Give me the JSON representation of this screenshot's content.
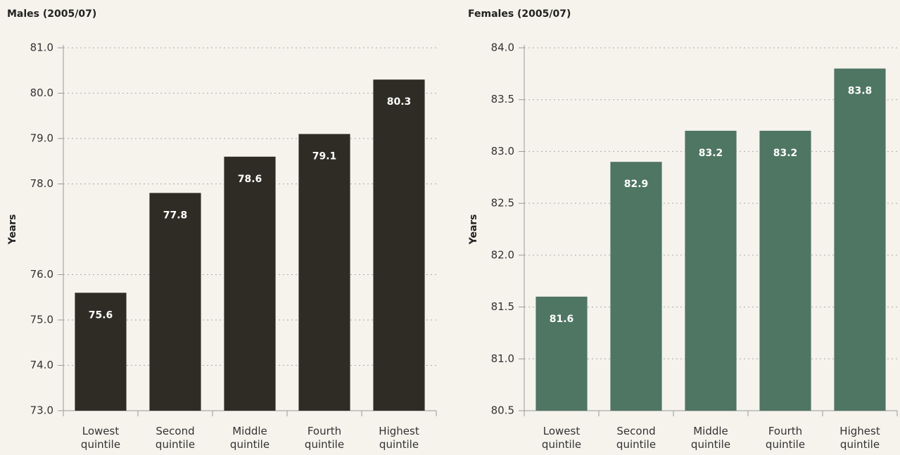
{
  "chart_data": [
    {
      "type": "bar",
      "title": "Males (2005/07)",
      "y_label": "Years",
      "categories": [
        "Lowest quintile",
        "Second quintile",
        "Middle quintile",
        "Fourth quintile",
        "Highest quintile"
      ],
      "values": [
        75.6,
        77.8,
        78.6,
        79.1,
        80.3
      ],
      "color": "#2f2c26",
      "ylim": [
        73,
        81
      ],
      "yticks": [
        {
          "value": 81,
          "label": "81.0"
        },
        {
          "value": 80,
          "label": "80.0"
        },
        {
          "value": 79,
          "label": "79.0"
        },
        {
          "value": 78,
          "label": "78.0"
        },
        {
          "value": 76,
          "label": "76.0"
        },
        {
          "value": 75,
          "label": "75.0"
        },
        {
          "value": 74,
          "label": "74.0"
        },
        {
          "value": 73,
          "label": "73.0"
        }
      ],
      "grid": true
    },
    {
      "type": "bar",
      "title": "Females (2005/07)",
      "y_label": "Years",
      "categories": [
        "Lowest quintile",
        "Second quintile",
        "Middle quintile",
        "Fourth quintile",
        "Highest quintile"
      ],
      "values": [
        81.6,
        82.9,
        83.2,
        83.2,
        83.8
      ],
      "color": "#4f7563",
      "ylim": [
        80.5,
        84
      ],
      "yticks": [
        {
          "value": 84,
          "label": "84.0"
        },
        83.5,
        {
          "value": 83,
          "label": "83.0"
        },
        82.5,
        {
          "value": 82,
          "label": "82.0"
        },
        81.5,
        {
          "value": 81,
          "label": "81.0"
        },
        80.5
      ],
      "grid": true
    }
  ]
}
